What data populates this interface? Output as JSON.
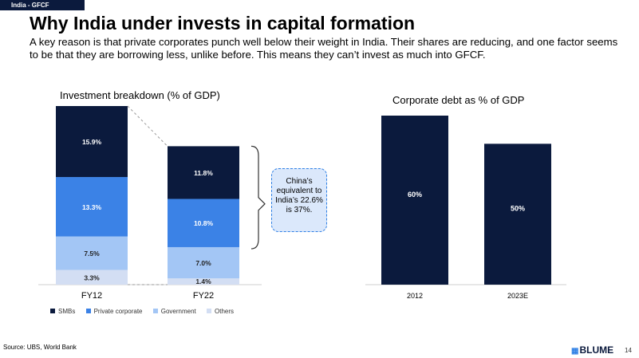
{
  "header": {
    "tag": "India - GFCF",
    "title": "Why India under invests in capital formation",
    "subtitle": "A key reason is that private corporates punch well below their weight in India. Their shares are reducing, and one factor seems to be that they are borrowing less, unlike before. This means they can’t invest as much into GFCF."
  },
  "callout": {
    "text": "China’s equivalent to India’s 22.6% is 37%."
  },
  "footer": {
    "source": "Source: UBS, World Bank",
    "logo": "BLUME",
    "page": "14"
  },
  "colors": {
    "SMBs": "#0b1a3d",
    "Private corporate": "#3b82e6",
    "Government": "#a3c6f5",
    "Others": "#d3def3"
  },
  "chart_data": [
    {
      "type": "bar",
      "stacked": true,
      "title": "Investment breakdown (% of GDP)",
      "categories": [
        "FY12",
        "FY22"
      ],
      "series": [
        {
          "name": "Others",
          "values": [
            3.3,
            1.4
          ],
          "labels": [
            "3.3%",
            "1.4%"
          ]
        },
        {
          "name": "Government",
          "values": [
            7.5,
            7.0
          ],
          "labels": [
            "7.5%",
            "7.0%"
          ]
        },
        {
          "name": "Private corporate",
          "values": [
            13.3,
            10.8
          ],
          "labels": [
            "13.3%",
            "10.8%"
          ]
        },
        {
          "name": "SMBs",
          "values": [
            15.9,
            11.8
          ],
          "labels": [
            "15.9%",
            "11.8%"
          ]
        }
      ],
      "legend_order": [
        "SMBs",
        "Private corporate",
        "Government",
        "Others"
      ],
      "legend_position": "bottom",
      "grid": false
    },
    {
      "type": "bar",
      "title": "Corporate debt as % of GDP",
      "categories": [
        "2012",
        "2023E"
      ],
      "values": [
        60,
        50
      ],
      "labels": [
        "60%",
        "50%"
      ],
      "ylim": [
        0,
        60
      ],
      "grid": false
    }
  ]
}
